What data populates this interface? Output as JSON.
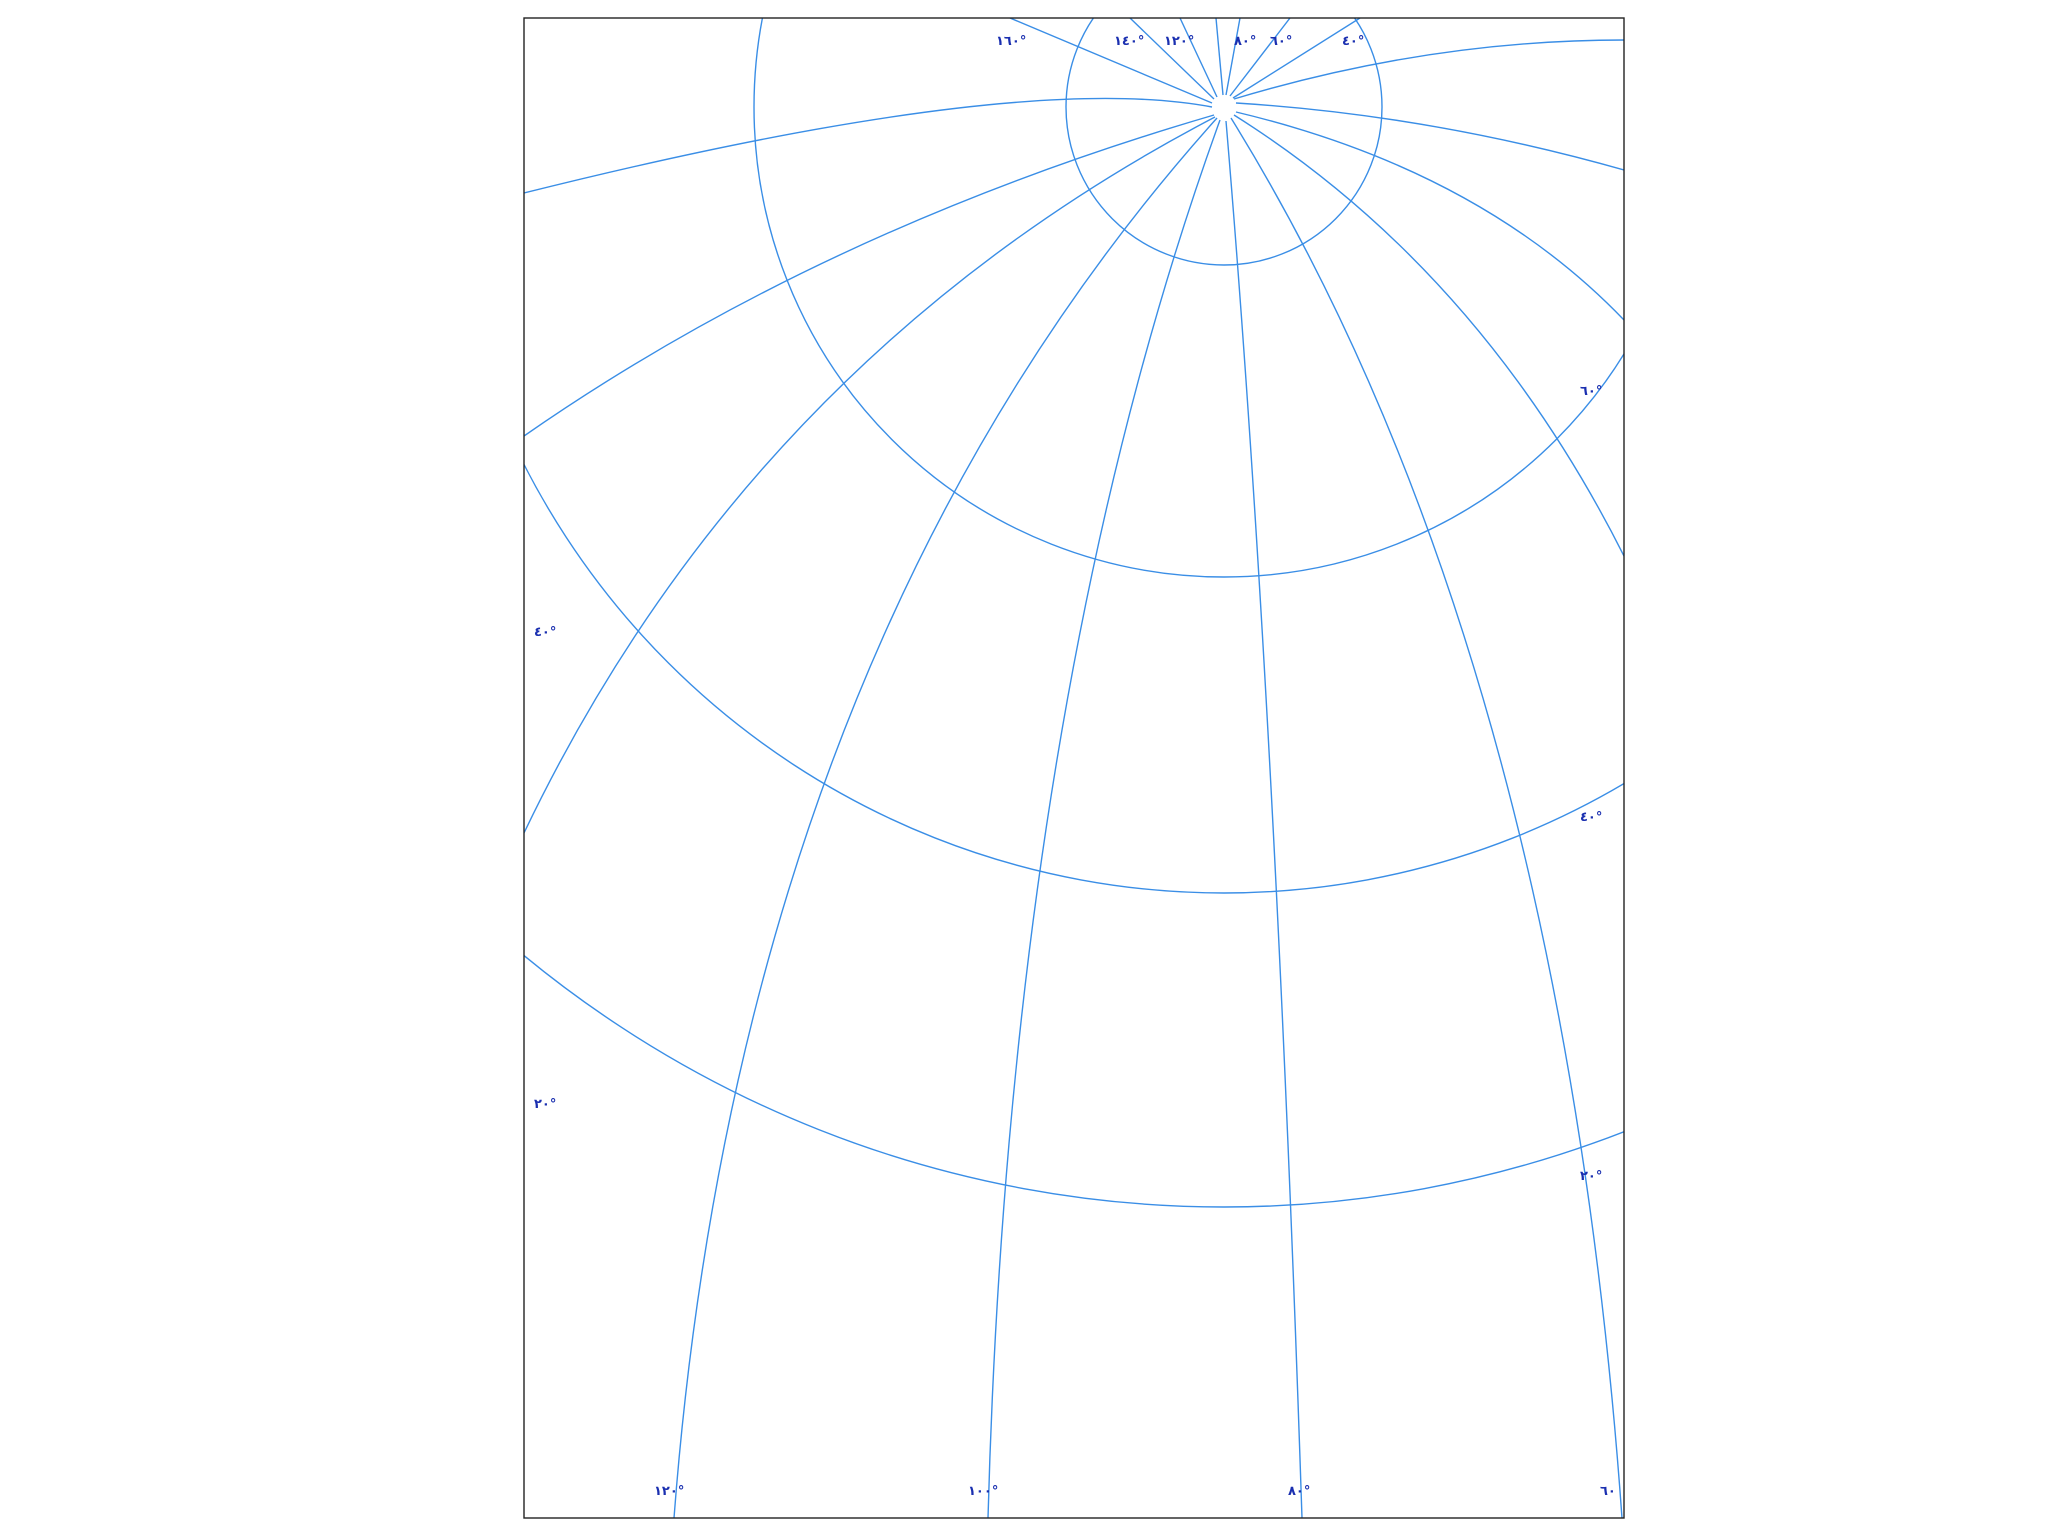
{
  "map": {
    "graticule_color": "#3a8ee6",
    "label_color": "#1a2fb0",
    "frame_color": "#222222",
    "meridian_labels_top": [
      "١٦٠°",
      "١٤٠°",
      "١٢٠°",
      "٨٠°",
      "٦٠°",
      "٤٠°"
    ],
    "meridian_labels_bottom": [
      "١٢٠°",
      "١٠٠°",
      "٨٠°",
      "٦٠"
    ],
    "parallel_labels_left": [
      "٤٠°",
      "٢٠°"
    ],
    "parallel_labels_right": [
      "٦٠°",
      "٤٠°",
      "٢٠°"
    ]
  }
}
